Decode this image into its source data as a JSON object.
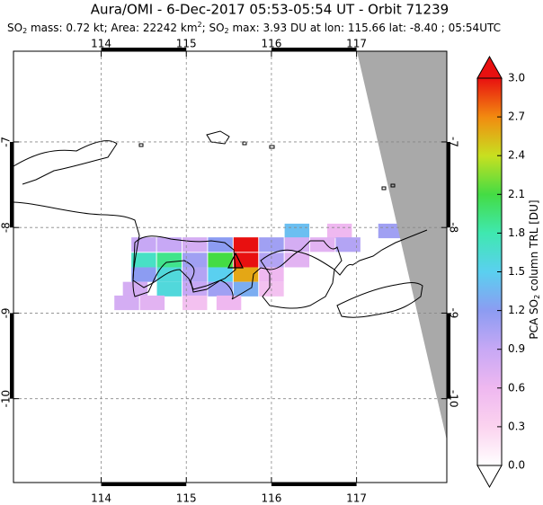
{
  "chart_data": {
    "type": "map",
    "title": "Aura/OMI - 6-Dec-2017 05:53-05:54 UT - Orbit 71239",
    "subtitle_parts": [
      "SO",
      "2",
      " mass: 0.72 kt; Area: 22242 km",
      "2",
      "; SO",
      "2",
      " max: 3.93 DU at lon: 115.66 lat: -8.40 ; 05:54UTC"
    ],
    "colorbar_label_parts": [
      "PCA SO",
      "2",
      " column TRL [DU]"
    ],
    "xlim": [
      112.97,
      118.06
    ],
    "xticks": [
      114,
      115,
      116,
      117
    ],
    "ylim": [
      -5.94,
      -10.98
    ],
    "yticks": [
      -7,
      -8,
      -9,
      -10
    ],
    "grid": true,
    "clim": [
      0,
      3
    ],
    "cticks": [
      {
        "value": 0,
        "label": "0.0"
      },
      0.3,
      0.6,
      0.9,
      1.2,
      1.5,
      1.8,
      2.1,
      2.4,
      2.7,
      {
        "value": 3,
        "label": "3.0"
      }
    ],
    "colormap": [
      "#ffffff",
      "#fbd3ef",
      "#efb8f0",
      "#c7a8f5",
      "#8c9cf2",
      "#5ad0f0",
      "#3fe8b0",
      "#44dc44",
      "#c8e020",
      "#f28a10",
      "#e81010"
    ],
    "pixels": {
      "lon": [
        116.3,
        116.8,
        117.4,
        114.5,
        114.8,
        115.1,
        115.4,
        115.7,
        116.0,
        116.3,
        116.6,
        116.9,
        114.5,
        114.8,
        115.1,
        115.4,
        115.7,
        116.0,
        116.3,
        114.5,
        114.8,
        115.1,
        115.4,
        115.7,
        116.0,
        114.4,
        114.8,
        115.1,
        115.4,
        115.7,
        116.0,
        114.3,
        114.6,
        115.1,
        115.5
      ],
      "lat": [
        -8.04,
        -8.04,
        -8.04,
        -8.2,
        -8.2,
        -8.2,
        -8.2,
        -8.2,
        -8.2,
        -8.2,
        -8.2,
        -8.2,
        -8.38,
        -8.38,
        -8.38,
        -8.38,
        -8.38,
        -8.38,
        -8.38,
        -8.55,
        -8.55,
        -8.55,
        -8.55,
        -8.55,
        -8.55,
        -8.72,
        -8.72,
        -8.72,
        -8.72,
        -8.72,
        -8.72,
        -8.88,
        -8.88,
        -8.88,
        -8.88
      ],
      "values": [
        1.4,
        0.6,
        1.1,
        0.9,
        0.9,
        0.8,
        1.2,
        3.0,
        1.1,
        0.8,
        0.7,
        1.0,
        1.7,
        1.9,
        1.1,
        2.1,
        3.0,
        1.0,
        0.7,
        1.2,
        1.6,
        1.0,
        1.5,
        2.6,
        0.6,
        0.8,
        1.6,
        0.9,
        1.1,
        1.3,
        0.5,
        0.8,
        0.7,
        0.5,
        0.6
      ]
    }
  }
}
